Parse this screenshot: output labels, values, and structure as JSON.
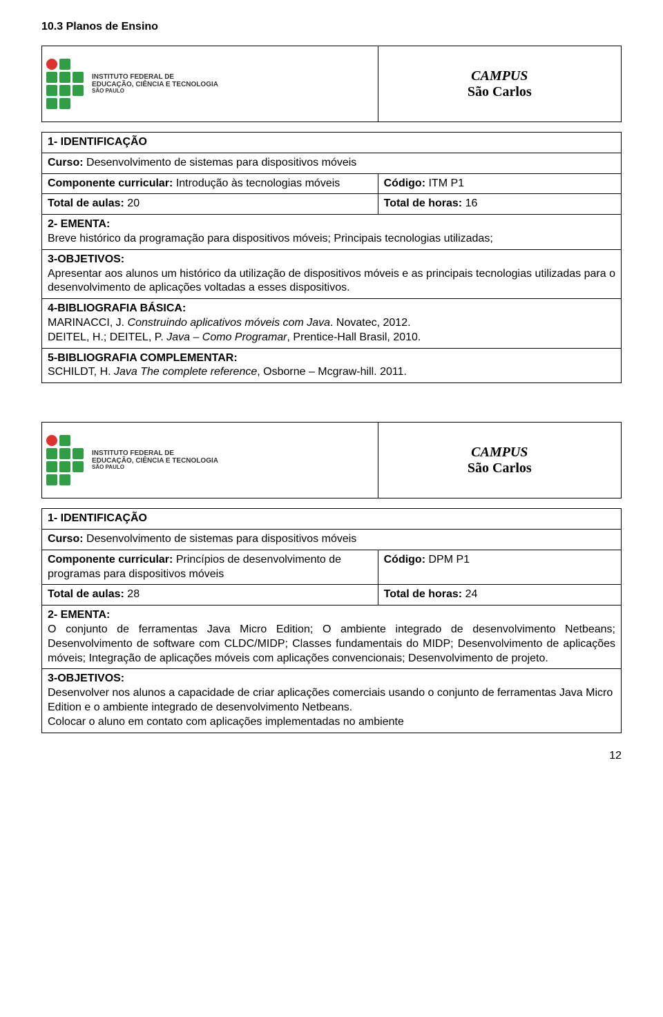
{
  "page": {
    "section_heading": "10.3 Planos de Ensino",
    "page_number": "12"
  },
  "logo": {
    "line1": "INSTITUTO FEDERAL DE",
    "line2": "EDUCAÇÃO, CIÊNCIA E TECNOLOGIA",
    "line3": "SÃO PAULO",
    "green": "#2f9e44",
    "red": "#e03131"
  },
  "campus": {
    "label": "CAMPUS",
    "name": "São Carlos"
  },
  "card1": {
    "ident_label": "1- IDENTIFICAÇÃO",
    "curso_label": "Curso:",
    "curso_value": "Desenvolvimento de sistemas para dispositivos móveis",
    "comp_label": "Componente curricular:",
    "comp_value": "Introdução às tecnologias móveis",
    "codigo_label": "Código:",
    "codigo_value": "ITM P1",
    "aulas_label": "Total de aulas:",
    "aulas_value": "20",
    "horas_label": "Total de horas:",
    "horas_value": "16",
    "ementa_label": "2- EMENTA:",
    "ementa_text": "Breve histórico da programação para dispositivos móveis; Principais tecnologias utilizadas;",
    "obj_label": "3-OBJETIVOS:",
    "obj_text": "Apresentar aos alunos um histórico da utilização de dispositivos móveis e as principais tecnologias utilizadas para o desenvolvimento de aplicações voltadas a esses dispositivos.",
    "bib_label": "4-BIBLIOGRAFIA BÁSICA:",
    "bib_a_author": "MARINACCI, J. ",
    "bib_a_title": "Construindo aplicativos móveis com Java",
    "bib_a_tail": ". Novatec, 2012.",
    "bib_b_author": "DEITEL, H.; DEITEL, P. ",
    "bib_b_title": "Java – Como Programar",
    "bib_b_tail": ", Prentice-Hall Brasil, 2010.",
    "comp_bib_label": "5-BIBLIOGRAFIA COMPLEMENTAR:",
    "comp_bib_author": "SCHILDT, H. ",
    "comp_bib_title": "Java The complete reference",
    "comp_bib_tail": ", Osborne – Mcgraw-hill. 2011."
  },
  "card2": {
    "ident_label": "1- IDENTIFICAÇÃO",
    "curso_label": "Curso:",
    "curso_value": "Desenvolvimento de sistemas para dispositivos móveis",
    "comp_label": "Componente curricular:",
    "comp_value": "Princípios de desenvolvimento de programas para dispositivos móveis",
    "codigo_label": "Código:",
    "codigo_value": "DPM P1",
    "aulas_label": "Total de aulas:",
    "aulas_value": "28",
    "horas_label": "Total de horas:",
    "horas_value": "24",
    "ementa_label": "2- EMENTA:",
    "ementa_text": "O conjunto de ferramentas Java Micro Edition; O ambiente integrado de desenvolvimento Netbeans; Desenvolvimento de software com CLDC/MIDP; Classes fundamentais do MIDP; Desenvolvimento de aplicações móveis; Integração de aplicações móveis com aplicações convencionais; Desenvolvimento de projeto.",
    "obj_label": "3-OBJETIVOS:",
    "obj_text1": "Desenvolver nos alunos a capacidade de criar aplicações comerciais usando o conjunto de ferramentas Java Micro Edition e o ambiente integrado de desenvolvimento Netbeans.",
    "obj_text2": "Colocar o aluno em contato com aplicações implementadas no ambiente"
  }
}
